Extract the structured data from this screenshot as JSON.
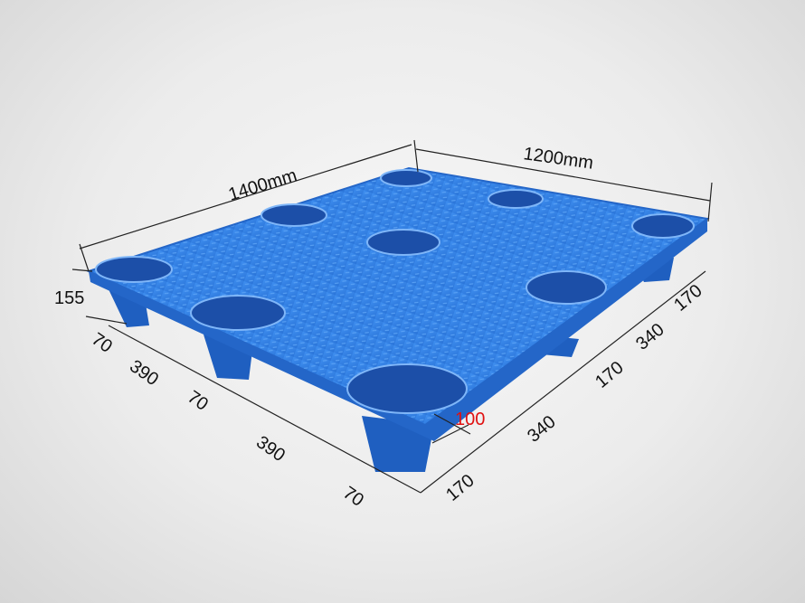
{
  "colors": {
    "pallet": "#2f7fe0",
    "pallet_dark": "#1f5fc0",
    "hole": "#1c4fa8",
    "annotation": "#111111",
    "highlight": "#e01010"
  },
  "dimensions": {
    "length": "1400mm",
    "width": "1200mm",
    "height": "155",
    "left_side": [
      "70",
      "390",
      "70",
      "390",
      "70"
    ],
    "right_side": [
      "170",
      "340",
      "170",
      "340",
      "170"
    ],
    "foot": "100"
  }
}
